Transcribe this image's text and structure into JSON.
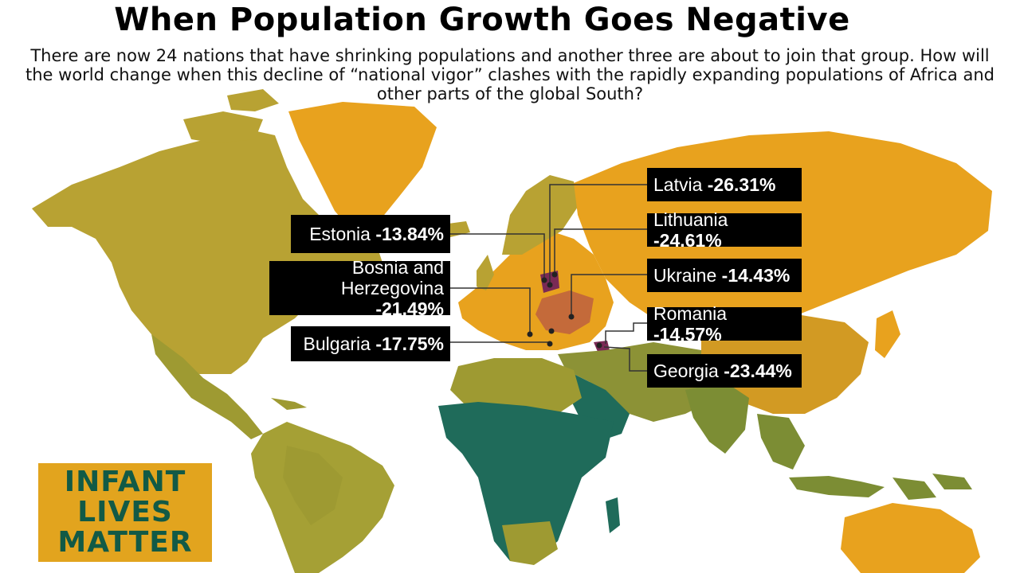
{
  "title": "When Population Growth Goes Negative",
  "subtitle": "There are now 24 nations that have shrinking populations and another three are about to join that group. How will the world change when this decline of “national vigor” clashes with the rapidly expanding populations of Africa and other parts of the global South?",
  "colors": {
    "shrinking": "#e8a21e",
    "americas": "#b8a233",
    "south_america": "#9e9a32",
    "africa": "#1f6b5a",
    "asia_olive": "#7c8d34",
    "highlight_orange": "#c46a3a",
    "highlight_purple": "#7a2a55",
    "label_bg": "#000000"
  },
  "labels": [
    {
      "id": "latvia",
      "country": "Latvia",
      "value": "-26.31%"
    },
    {
      "id": "lithuania",
      "country": "Lithuania",
      "value": "-24.61%"
    },
    {
      "id": "ukraine",
      "country": "Ukraine",
      "value": "-14.43%"
    },
    {
      "id": "romania",
      "country": "Romania",
      "value": "-14.57%"
    },
    {
      "id": "georgia",
      "country": "Georgia",
      "value": "-23.44%"
    },
    {
      "id": "estonia",
      "country": "Estonia",
      "value": "-13.84%"
    },
    {
      "id": "bosnia",
      "country": "Bosnia and Herzegovina",
      "country_line1": "Bosnia and",
      "country_line2": "Herzegovina",
      "value": "-21.49%"
    },
    {
      "id": "bulgaria",
      "country": "Bulgaria",
      "value": "-17.75%"
    }
  ],
  "badge": {
    "line1": "INFANT",
    "line2": "LIVES",
    "line3": "MATTER"
  }
}
